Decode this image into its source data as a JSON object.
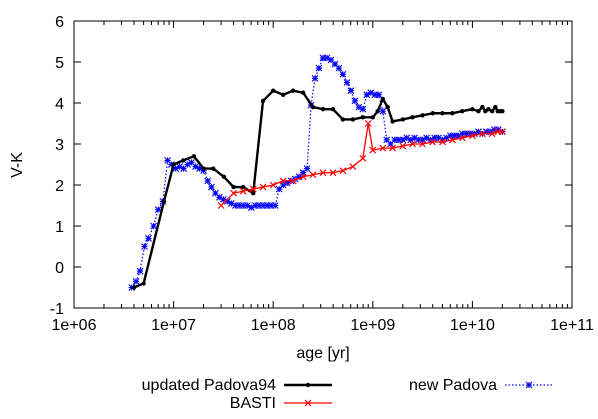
{
  "chart_data": {
    "type": "line",
    "xlabel": "age [yr]",
    "ylabel": "V-K",
    "xscale": "log",
    "xlim": [
      1000000,
      100000000000
    ],
    "ylim": [
      -1,
      6
    ],
    "x_ticks": [
      1000000,
      10000000,
      100000000,
      1000000000,
      10000000000,
      100000000000
    ],
    "x_tick_labels": [
      "1e+06",
      "1e+07",
      "1e+08",
      "1e+09",
      "1e+10",
      "1e+11"
    ],
    "y_ticks": [
      -1,
      0,
      1,
      2,
      3,
      4,
      5,
      6
    ],
    "y_tick_labels": [
      "-1",
      "0",
      "1",
      "2",
      "3",
      "4",
      "5",
      "6"
    ],
    "legend_placement": "below",
    "series": [
      {
        "name": "updated Padova94",
        "color": "#000000",
        "style": "solid-thick",
        "marker": "dot",
        "x": [
          4000000,
          5000000,
          8000000,
          10000000,
          12500000,
          16000000,
          20000000,
          25000000,
          32000000,
          40000000,
          50000000,
          63000000,
          79000000,
          100000000,
          126000000,
          158000000,
          200000000,
          251000000,
          316000000,
          398000000,
          501000000,
          631000000,
          794000000,
          1000000000,
          1120000000,
          1260000000,
          1410000000,
          1580000000,
          2000000000,
          2500000000,
          3160000000,
          4000000000,
          5000000000,
          6300000000,
          7900000000,
          10000000000,
          11500000000,
          12600000000,
          13500000000,
          14500000000,
          15800000000,
          17000000000,
          18000000000,
          19000000000,
          20000000000
        ],
        "y": [
          -0.5,
          -0.4,
          1.6,
          2.5,
          2.6,
          2.7,
          2.4,
          2.4,
          2.2,
          1.95,
          1.95,
          1.8,
          4.05,
          4.3,
          4.2,
          4.3,
          4.25,
          3.9,
          3.85,
          3.85,
          3.6,
          3.6,
          3.65,
          3.65,
          3.8,
          4.1,
          3.9,
          3.55,
          3.6,
          3.65,
          3.7,
          3.75,
          3.75,
          3.75,
          3.8,
          3.85,
          3.8,
          3.9,
          3.8,
          3.85,
          3.8,
          3.9,
          3.8,
          3.8,
          3.8
        ]
      },
      {
        "name": "BASTI",
        "color": "#ff0000",
        "style": "solid",
        "marker": "cross",
        "x": [
          30000000,
          40000000,
          50000000,
          63000000,
          79000000,
          100000000,
          126000000,
          158000000,
          200000000,
          251000000,
          316000000,
          398000000,
          501000000,
          631000000,
          794000000,
          900000000,
          1000000000,
          1260000000,
          1580000000,
          2000000000,
          2510000000,
          3160000000,
          3980000000,
          5010000000,
          6310000000,
          7940000000,
          10000000000,
          12600000000,
          15800000000,
          18000000000,
          20000000000
        ],
        "y": [
          1.5,
          1.8,
          1.85,
          1.9,
          1.95,
          2.0,
          2.1,
          2.1,
          2.2,
          2.25,
          2.3,
          2.3,
          2.35,
          2.45,
          2.65,
          3.5,
          2.85,
          2.9,
          2.9,
          2.95,
          3.0,
          3.0,
          3.05,
          3.05,
          3.1,
          3.15,
          3.2,
          3.25,
          3.25,
          3.3,
          3.3
        ]
      },
      {
        "name": "new Padova",
        "color": "#0000ff",
        "style": "dotted",
        "marker": "star",
        "x": [
          3800000,
          4200000,
          4600000,
          5100000,
          5600000,
          6300000,
          7000000,
          7800000,
          8700000,
          9500000,
          10500000,
          11500000,
          12600000,
          13800000,
          15100000,
          16600000,
          18200000,
          20000000,
          22000000,
          24000000,
          26300000,
          28800000,
          31600000,
          34700000,
          38000000,
          41700000,
          45700000,
          50100000,
          55000000,
          60300000,
          66100000,
          72400000,
          79400000,
          87100000,
          95500000,
          105000000,
          115000000,
          126000000,
          138000000,
          151000000,
          166000000,
          182000000,
          200000000,
          219000000,
          240000000,
          263000000,
          288000000,
          316000000,
          347000000,
          380000000,
          417000000,
          457000000,
          501000000,
          550000000,
          603000000,
          661000000,
          724000000,
          794000000,
          871000000,
          955000000,
          1050000000,
          1150000000,
          1260000000,
          1380000000,
          1510000000,
          1660000000,
          1820000000,
          2000000000,
          2190000000,
          2400000000,
          2630000000,
          2880000000,
          3160000000,
          3470000000,
          3800000000,
          4170000000,
          4570000000,
          5010000000,
          5500000000,
          6030000000,
          6610000000,
          7240000000,
          7940000000,
          8710000000,
          9550000000,
          10500000000,
          11500000000,
          12600000000,
          13800000000,
          15100000000,
          16600000000,
          18200000000,
          20000000000
        ],
        "y": [
          -0.5,
          -0.35,
          -0.1,
          0.5,
          0.7,
          1.0,
          1.4,
          1.6,
          2.6,
          2.5,
          2.4,
          2.45,
          2.4,
          2.5,
          2.55,
          2.45,
          2.4,
          2.35,
          2.1,
          1.95,
          1.8,
          1.7,
          1.65,
          1.6,
          1.55,
          1.5,
          1.5,
          1.5,
          1.5,
          1.45,
          1.5,
          1.5,
          1.5,
          1.5,
          1.5,
          1.5,
          1.9,
          2.0,
          2.05,
          2.1,
          2.15,
          2.2,
          2.3,
          2.4,
          3.95,
          4.6,
          4.85,
          5.1,
          5.1,
          5.05,
          4.95,
          4.85,
          4.7,
          4.5,
          4.3,
          4.05,
          3.9,
          3.85,
          4.2,
          4.25,
          4.2,
          4.2,
          3.8,
          3.1,
          3.0,
          3.1,
          3.1,
          3.1,
          3.15,
          3.1,
          3.15,
          3.1,
          3.1,
          3.15,
          3.1,
          3.15,
          3.15,
          3.1,
          3.15,
          3.2,
          3.2,
          3.2,
          3.25,
          3.25,
          3.25,
          3.25,
          3.3,
          3.25,
          3.3,
          3.3,
          3.35,
          3.35,
          3.3
        ]
      }
    ]
  }
}
